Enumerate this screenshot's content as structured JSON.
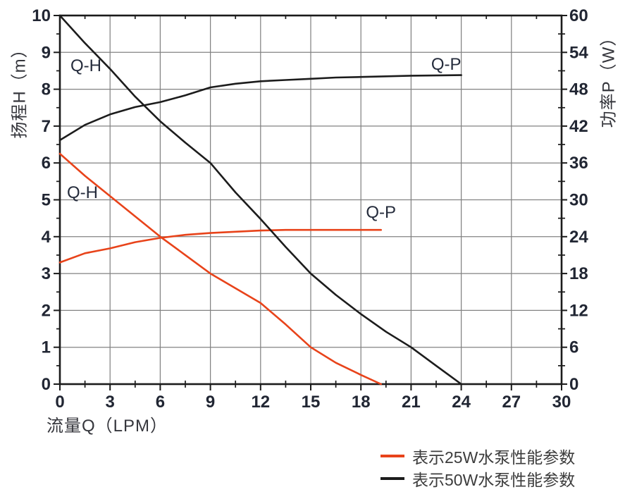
{
  "figure": {
    "background": "#ffffff",
    "axis_color": "#1b1b1b",
    "grid_color": "#828282",
    "tick_label_color": "#212633",
    "annotation_color": "#252c3c",
    "axis_title_color": "#35363c",
    "legend_text_color": "#3c3c3c"
  },
  "chart_data": {
    "type": "line",
    "title": "",
    "xlabel": "流量Q（LPM）",
    "ylabel_left": "扬程H（m）",
    "ylabel_right": "功率P（W）",
    "x_range": [
      0,
      30
    ],
    "x_major": 3,
    "x_minor": 1.5,
    "yl_range": [
      0,
      10
    ],
    "yl_major": 1,
    "yl_minor": 0.5,
    "yr_range": [
      0,
      60
    ],
    "yr_major": 6,
    "yr_minor": 3,
    "x_ticks": [
      0,
      3,
      6,
      9,
      12,
      15,
      18,
      21,
      24,
      27,
      30
    ],
    "yl_ticks": [
      0,
      1,
      2,
      3,
      4,
      5,
      6,
      7,
      8,
      9,
      10
    ],
    "yr_ticks": [
      0,
      6,
      12,
      18,
      24,
      30,
      36,
      42,
      48,
      54,
      60
    ],
    "grid": true,
    "legend_position": "bottom-right",
    "series": [
      {
        "name": "表示25W水泵性能参数",
        "color": "#e8431a",
        "qh_axis": "left (H, m)",
        "qh": [
          [
            0,
            6.25
          ],
          [
            1.5,
            5.65
          ],
          [
            3,
            5.1
          ],
          [
            4.5,
            4.55
          ],
          [
            6,
            4.0
          ],
          [
            7.5,
            3.5
          ],
          [
            9,
            3.0
          ],
          [
            10.5,
            2.6
          ],
          [
            12,
            2.2
          ],
          [
            13.5,
            1.62
          ],
          [
            15,
            1.0
          ],
          [
            16.5,
            0.58
          ],
          [
            18,
            0.25
          ],
          [
            19.2,
            0
          ]
        ],
        "qp_axis": "right (P, W)",
        "qp": [
          [
            0,
            19.8
          ],
          [
            1.5,
            21.3
          ],
          [
            3,
            22.1
          ],
          [
            4.5,
            23.1
          ],
          [
            6,
            23.8
          ],
          [
            7.5,
            24.3
          ],
          [
            9,
            24.6
          ],
          [
            10.5,
            24.8
          ],
          [
            12,
            25.0
          ],
          [
            13.5,
            25.1
          ],
          [
            15,
            25.1
          ],
          [
            16.5,
            25.1
          ],
          [
            18,
            25.1
          ],
          [
            19.2,
            25.1
          ]
        ]
      },
      {
        "name": "表示50W水泵性能参数",
        "color": "#1c1c1c",
        "qh_axis": "left (H, m)",
        "qh": [
          [
            0,
            10
          ],
          [
            1.5,
            9.25
          ],
          [
            3,
            8.55
          ],
          [
            4.5,
            7.8
          ],
          [
            6,
            7.13
          ],
          [
            7.5,
            6.55
          ],
          [
            9,
            6.0
          ],
          [
            10.5,
            5.2
          ],
          [
            12,
            4.48
          ],
          [
            13.5,
            3.72
          ],
          [
            15,
            3.0
          ],
          [
            16.5,
            2.42
          ],
          [
            18,
            1.9
          ],
          [
            19.5,
            1.42
          ],
          [
            21,
            1.0
          ],
          [
            22.5,
            0.5
          ],
          [
            24,
            0
          ]
        ],
        "qp_axis": "right (P, W)",
        "qp": [
          [
            0,
            39.7
          ],
          [
            1.5,
            42.2
          ],
          [
            3,
            43.9
          ],
          [
            4.5,
            45.1
          ],
          [
            6,
            45.9
          ],
          [
            7.5,
            47.0
          ],
          [
            9,
            48.3
          ],
          [
            10.5,
            48.9
          ],
          [
            12,
            49.3
          ],
          [
            13.5,
            49.5
          ],
          [
            15,
            49.7
          ],
          [
            16.5,
            49.9
          ],
          [
            18,
            50.0
          ],
          [
            21,
            50.2
          ],
          [
            24,
            50.3
          ]
        ]
      }
    ],
    "annotations": [
      {
        "text": "Q-H",
        "q": 1.56,
        "v": 8.64,
        "series": "50W"
      },
      {
        "text": "Q-H",
        "q": 1.35,
        "v": 5.2,
        "series": "25W"
      },
      {
        "text": "Q-P",
        "q": 23.1,
        "v": 8.68,
        "series": "50W"
      },
      {
        "text": "Q-P",
        "q": 19.2,
        "v": 4.67,
        "series": "25W"
      }
    ]
  },
  "legend": {
    "items": [
      {
        "label": "表示25W水泵性能参数",
        "color": "#e8431a"
      },
      {
        "label": "表示50W水泵性能参数",
        "color": "#1c1c1c"
      }
    ]
  }
}
